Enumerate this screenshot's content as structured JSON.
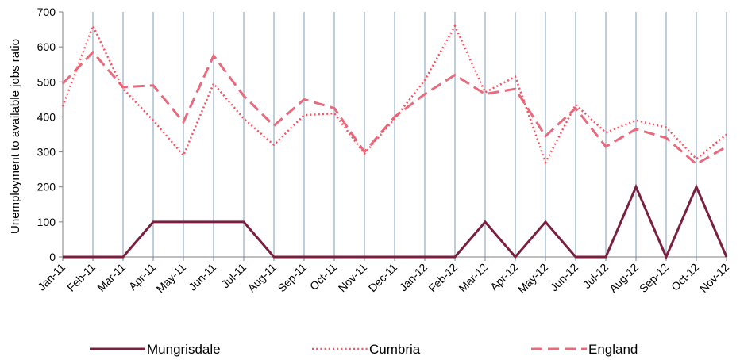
{
  "chart_data": {
    "type": "line",
    "title": "",
    "xlabel": "",
    "ylabel": "Unemployment to available jobs ratio",
    "ylim": [
      0,
      700
    ],
    "yticks": [
      0,
      100,
      200,
      300,
      400,
      500,
      600,
      700
    ],
    "grid": "vertical",
    "legend_position": "bottom",
    "categories": [
      "Jan-11",
      "Feb-11",
      "Mar-11",
      "Apr-11",
      "May-11",
      "Jun-11",
      "Jul-11",
      "Aug-11",
      "Sep-11",
      "Oct-11",
      "Nov-11",
      "Dec-11",
      "Jan-12",
      "Feb-12",
      "Mar-12",
      "Apr-12",
      "May-12",
      "Jun-12",
      "Jul-12",
      "Aug-12",
      "Sep-12",
      "Oct-12",
      "Nov-12"
    ],
    "series": [
      {
        "name": "Mungrisdale",
        "color": "#7a1f3d",
        "style": "solid",
        "values": [
          0,
          0,
          0,
          100,
          100,
          100,
          100,
          0,
          0,
          0,
          0,
          0,
          0,
          0,
          100,
          0,
          100,
          0,
          0,
          200,
          0,
          200,
          0
        ]
      },
      {
        "name": "Cumbria",
        "color": "#ff4f5e",
        "style": "dotted",
        "values": [
          430,
          660,
          480,
          390,
          290,
          495,
          395,
          320,
          405,
          410,
          295,
          395,
          505,
          660,
          470,
          515,
          270,
          435,
          355,
          390,
          370,
          280,
          350
        ]
      },
      {
        "name": "England",
        "color": "#e86a7c",
        "style": "dashed",
        "values": [
          495,
          585,
          485,
          490,
          385,
          575,
          460,
          375,
          450,
          425,
          300,
          400,
          465,
          520,
          465,
          480,
          345,
          425,
          315,
          365,
          340,
          265,
          315
        ]
      }
    ]
  }
}
